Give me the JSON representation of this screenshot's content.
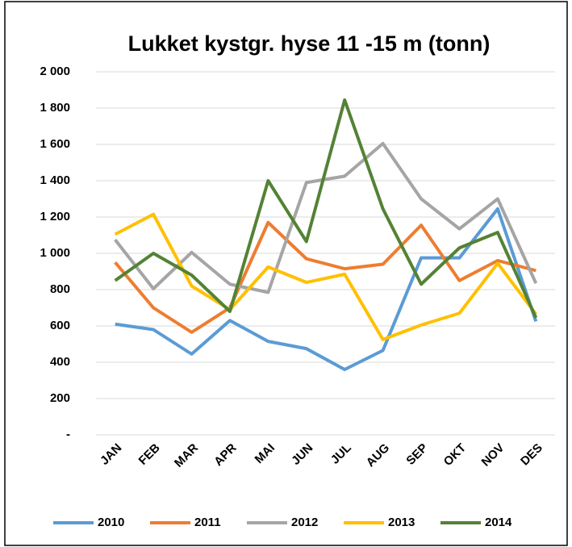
{
  "chart_data": {
    "type": "line",
    "title": "Lukket kystgr. hyse 11 -15 m (tonn)",
    "categories": [
      "JAN",
      "FEB",
      "MAR",
      "APR",
      "MAI",
      "JUN",
      "JUL",
      "AUG",
      "SEP",
      "OKT",
      "NOV",
      "DES"
    ],
    "series": [
      {
        "name": "2010",
        "color": "#5b9bd5",
        "values": [
          610,
          580,
          445,
          630,
          515,
          475,
          360,
          465,
          975,
          975,
          1245,
          625
        ]
      },
      {
        "name": "2011",
        "color": "#ed7d31",
        "values": [
          950,
          700,
          565,
          700,
          1170,
          970,
          915,
          940,
          1155,
          850,
          960,
          905
        ]
      },
      {
        "name": "2012",
        "color": "#a5a5a5",
        "values": [
          1075,
          805,
          1005,
          830,
          785,
          1390,
          1425,
          1605,
          1300,
          1135,
          1300,
          835
        ]
      },
      {
        "name": "2013",
        "color": "#ffc000",
        "values": [
          1105,
          1215,
          820,
          690,
          925,
          840,
          885,
          525,
          605,
          670,
          945,
          665
        ]
      },
      {
        "name": "2014",
        "color": "#548235",
        "values": [
          850,
          1000,
          880,
          680,
          1400,
          1065,
          1845,
          1245,
          830,
          1030,
          1115,
          645
        ]
      }
    ],
    "ylim": [
      0,
      2000
    ],
    "yticks": [
      {
        "value": 0,
        "label": "-"
      },
      200,
      400,
      600,
      800,
      {
        "value": 1000,
        "label": "1 000"
      },
      {
        "value": 1200,
        "label": "1 200"
      },
      {
        "value": 1400,
        "label": "1 400"
      },
      {
        "value": 1600,
        "label": "1 600"
      },
      {
        "value": 1800,
        "label": "1 800"
      },
      {
        "value": 2000,
        "label": "2 000"
      }
    ],
    "grid": true,
    "legend": "bottom"
  }
}
